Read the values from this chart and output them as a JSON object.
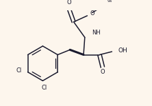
{
  "bg_color": "#fdf6ed",
  "line_color": "#1a1a2e",
  "line_width": 1.1,
  "figsize": [
    2.22,
    1.54
  ],
  "dpi": 100,
  "xlim": [
    0,
    222
  ],
  "ylim": [
    0,
    154
  ]
}
